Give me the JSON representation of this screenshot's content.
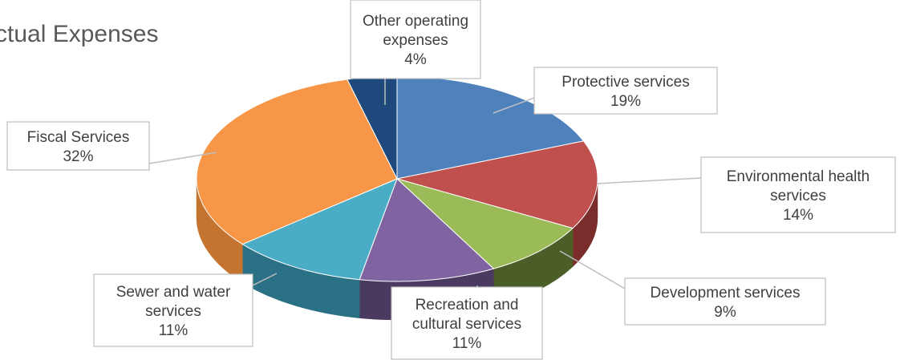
{
  "chart_data": {
    "type": "pie",
    "style": "3d",
    "title": "ctual Expenses",
    "slices": [
      {
        "name": "Protective services",
        "value": 19,
        "label_lines": [
          "Protective services"
        ],
        "pct_label": "19%",
        "color": "#4F81BD",
        "side_color": "#2E5686"
      },
      {
        "name": "Environmental health services",
        "value": 14,
        "label_lines": [
          "Environmental health",
          "services"
        ],
        "pct_label": "14%",
        "color": "#C0504D",
        "side_color": "#7A2D2B"
      },
      {
        "name": "Development services",
        "value": 9,
        "label_lines": [
          "Development services"
        ],
        "pct_label": "9%",
        "color": "#9BBB59",
        "side_color": "#4B5E27"
      },
      {
        "name": "Recreation and cultural services",
        "value": 11,
        "label_lines": [
          "Recreation and",
          "cultural services"
        ],
        "pct_label": "11%",
        "color": "#8064A2",
        "side_color": "#4A3A60"
      },
      {
        "name": "Sewer and water services",
        "value": 11,
        "label_lines": [
          "Sewer and water",
          "services"
        ],
        "pct_label": "11%",
        "color": "#4BACC6",
        "side_color": "#2B7185"
      },
      {
        "name": "Fiscal Services",
        "value": 32,
        "label_lines": [
          "Fiscal Services"
        ],
        "pct_label": "32%",
        "color": "#F79646",
        "side_color": "#C4742F"
      },
      {
        "name": "Other operating expenses",
        "value": 4,
        "label_lines": [
          "Other operating",
          "expenses"
        ],
        "pct_label": "4%",
        "color": "#1F497D",
        "side_color": "#132D4D"
      }
    ]
  }
}
